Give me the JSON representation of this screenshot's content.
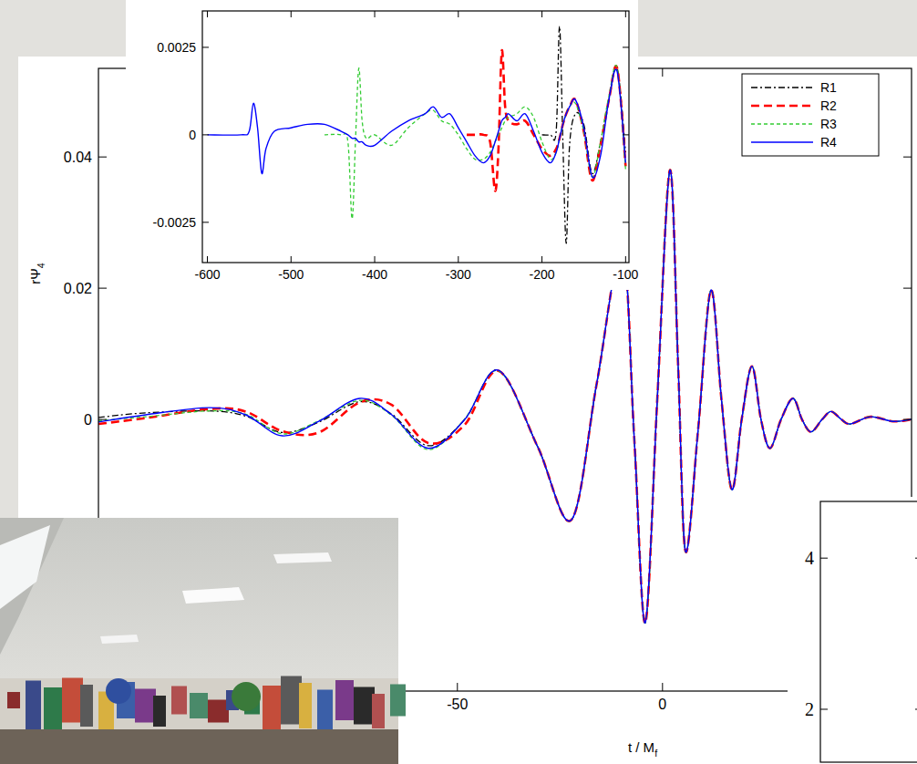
{
  "chart_data": [
    {
      "type": "line",
      "y_label": "rΨ4",
      "x_label": "t / Mf",
      "x": [
        -137.5,
        -126,
        -110.4,
        -101.6,
        -92.7,
        -83.8,
        -73.8,
        -66,
        -57.1,
        -48.2,
        -40,
        -30.4,
        -22.2,
        -16,
        -9.8,
        -6.9,
        -4.2,
        -1.3,
        1.8,
        3.8,
        5.6,
        8.7,
        11.8,
        14.4,
        16.9,
        19.3,
        21.8,
        24,
        26.2,
        28.9,
        31.8,
        34,
        36.2,
        38.9,
        41.1,
        43.6,
        45.8,
        50.7,
        56.2,
        60.7
      ],
      "series": [
        {
          "name": "R1",
          "color": "#000000",
          "line_style": "dashdot",
          "values": [
            0.0003,
            0.001,
            0.0013,
            0.0005,
            -0.002,
            -0.0004,
            0.0027,
            0.0008,
            -0.004,
            0,
            0.0075,
            -0.0042,
            -0.0153,
            0.0056,
            0.026,
            -0.0028,
            -0.031,
            0.0028,
            0.038,
            0.0083,
            -0.0201,
            -0.0014,
            0.0197,
            0.0028,
            -0.0107,
            0,
            0.0081,
            0,
            -0.0044,
            0,
            0.0032,
            0,
            -0.0019,
            0,
            0.0012,
            0,
            -0.0007,
            0.0004,
            -0.0003,
            0
          ]
        },
        {
          "name": "R2",
          "color": "#ff0000",
          "line_style": "dashed",
          "values": [
            -0.0007,
            0.0002,
            0.0016,
            0.0012,
            -0.0018,
            -0.002,
            0.0026,
            0.0022,
            -0.0036,
            -0.0008,
            0.0074,
            -0.0042,
            -0.0153,
            0.0056,
            0.026,
            -0.0028,
            -0.031,
            0.0028,
            0.038,
            0.0083,
            -0.0201,
            -0.0014,
            0.0197,
            0.0028,
            -0.0107,
            0,
            0.0081,
            0,
            -0.0044,
            0,
            0.0032,
            0,
            -0.0019,
            0,
            0.0012,
            0,
            -0.0007,
            0.0004,
            -0.0003,
            0
          ]
        },
        {
          "name": "R3",
          "color": "#33cc33",
          "line_style": "short-dashed",
          "values": [
            -0.0002,
            0.0004,
            0.0013,
            0.0008,
            -0.0022,
            -0.0002,
            0.0029,
            0.0006,
            -0.0046,
            0.0001,
            0.0074,
            -0.0042,
            -0.0153,
            0.0056,
            0.026,
            -0.0028,
            -0.031,
            0.0028,
            0.038,
            0.0083,
            -0.0201,
            -0.0014,
            0.0197,
            0.0028,
            -0.0107,
            0,
            0.0081,
            0,
            -0.0044,
            0,
            0.0032,
            0,
            -0.0019,
            0,
            0.0012,
            0,
            -0.0007,
            0.0004,
            -0.0003,
            0
          ]
        },
        {
          "name": "R4",
          "color": "#0000ff",
          "line_style": "solid",
          "values": [
            -0.0004,
            0.0007,
            0.0018,
            0.0007,
            -0.0025,
            -0.0003,
            0.0032,
            0.0007,
            -0.0044,
            0,
            0.0075,
            -0.0042,
            -0.0153,
            0.0056,
            0.026,
            -0.0028,
            -0.031,
            0.0028,
            0.038,
            0.0083,
            -0.0201,
            -0.0014,
            0.0197,
            0.0028,
            -0.0107,
            0,
            0.0081,
            0,
            -0.0044,
            0,
            0.0032,
            0,
            -0.0019,
            0,
            0.0012,
            0,
            -0.0007,
            0.0004,
            -0.0003,
            0
          ]
        }
      ],
      "xlim": [
        -137.5,
        60.7
      ],
      "ylim": [
        -0.0414,
        0.0535
      ],
      "xticks": [
        -50,
        0
      ],
      "yticks": [
        0,
        0.02,
        0.04
      ],
      "legend": "upper right"
    },
    {
      "type": "line",
      "x": [
        -600,
        -560,
        -550,
        -545,
        -540,
        -535,
        -530,
        -520,
        -500,
        -480,
        -460,
        -440,
        -432,
        -427,
        -423,
        -419,
        -415,
        -410,
        -400,
        -380,
        -360,
        -340,
        -330,
        -320,
        -310,
        -300,
        -290,
        -280,
        -270,
        -262,
        -256,
        -252,
        -248,
        -244,
        -240,
        -230,
        -220,
        -210,
        -200,
        -190,
        -183,
        -179,
        -175,
        -171,
        -167,
        -160,
        -150,
        -140,
        -130,
        -120,
        -110,
        -100
      ],
      "series": [
        {
          "color": "#000000",
          "line_style": "dashdot",
          "values": [
            null,
            null,
            null,
            null,
            null,
            null,
            null,
            null,
            null,
            null,
            null,
            null,
            null,
            null,
            null,
            null,
            null,
            null,
            null,
            null,
            null,
            null,
            null,
            null,
            null,
            null,
            null,
            null,
            null,
            null,
            null,
            null,
            null,
            null,
            null,
            null,
            null,
            null,
            0,
            0,
            0.0001,
            0.0031,
            -0.0002,
            -0.0031,
            -0.0003,
            0.0006,
            0.0003,
            -0.0011,
            -0.0002,
            0.001,
            0.0019,
            -0.0005
          ]
        },
        {
          "color": "#ff0000",
          "line_style": "dashed",
          "values": [
            null,
            null,
            null,
            null,
            null,
            null,
            null,
            null,
            null,
            null,
            null,
            null,
            null,
            null,
            null,
            null,
            null,
            null,
            null,
            null,
            null,
            null,
            null,
            null,
            null,
            null,
            0,
            0,
            0,
            -0.0002,
            -0.0016,
            -0.0004,
            0.0024,
            0.0008,
            0.0004,
            0.0003,
            0.0004,
            0,
            -0.0004,
            -0.0006,
            -0.0004,
            -0.0001,
            0.0003,
            0.0006,
            0.0008,
            0.001,
            0.0001,
            -0.0013,
            -0.0003,
            0.001,
            0.0019,
            -0.0009
          ]
        },
        {
          "color": "#33cc33",
          "line_style": "short-dashed",
          "values": [
            null,
            null,
            null,
            null,
            null,
            null,
            null,
            null,
            null,
            null,
            0,
            0,
            -0.0002,
            -0.0024,
            -0.0002,
            0.0019,
            0.0004,
            -0.0001,
            0,
            -0.0003,
            0.0002,
            0.0006,
            0.0007,
            0.0004,
            0.0003,
            0,
            -0.0004,
            -0.0007,
            -0.0007,
            -0.0005,
            -0.0002,
            0,
            0.0002,
            0.0004,
            0.0005,
            0.0006,
            0.0008,
            0.0005,
            -0.0002,
            -0.0007,
            -0.0005,
            -0.0001,
            0.0003,
            0.0006,
            0.0008,
            0.0009,
            0.0001,
            -0.0012,
            -0.0002,
            0.0011,
            0.0019,
            -0.001
          ]
        },
        {
          "color": "#0000ff",
          "line_style": "solid",
          "values": [
            0,
            0,
            0.0001,
            0.0009,
            0.0002,
            -0.0011,
            -0.0004,
            0.0001,
            0.0002,
            0.0003,
            0.0003,
            0.0001,
            0,
            -0.0001,
            -0.0001,
            -0.0002,
            -0.0002,
            -0.0003,
            -0.0003,
            0.0001,
            0.0004,
            0.0006,
            0.0008,
            0.0005,
            0.0006,
            0.0002,
            -0.0002,
            -0.0006,
            -0.0008,
            -0.0006,
            -0.0002,
            0.0001,
            0.0004,
            0.0005,
            0.0006,
            0.0004,
            0.0006,
            0.0001,
            -0.0005,
            -0.0008,
            -0.0005,
            -0.0001,
            0.0003,
            0.0006,
            0.0008,
            0.001,
            0.0002,
            -0.0012,
            -0.0006,
            0.001,
            0.0018,
            -0.0008
          ]
        }
      ],
      "xlim": [
        -606,
        -96
      ],
      "ylim": [
        -0.00365,
        0.00354
      ],
      "xticks": [
        -600,
        -500,
        -400,
        -300,
        -200,
        -100
      ],
      "yticks": [
        -0.0025,
        0,
        0.0025
      ]
    },
    {
      "type": "line",
      "ylim": [
        1.3,
        4.75
      ],
      "yticks": [
        2,
        4
      ],
      "tick_labels": "y"
    }
  ]
}
